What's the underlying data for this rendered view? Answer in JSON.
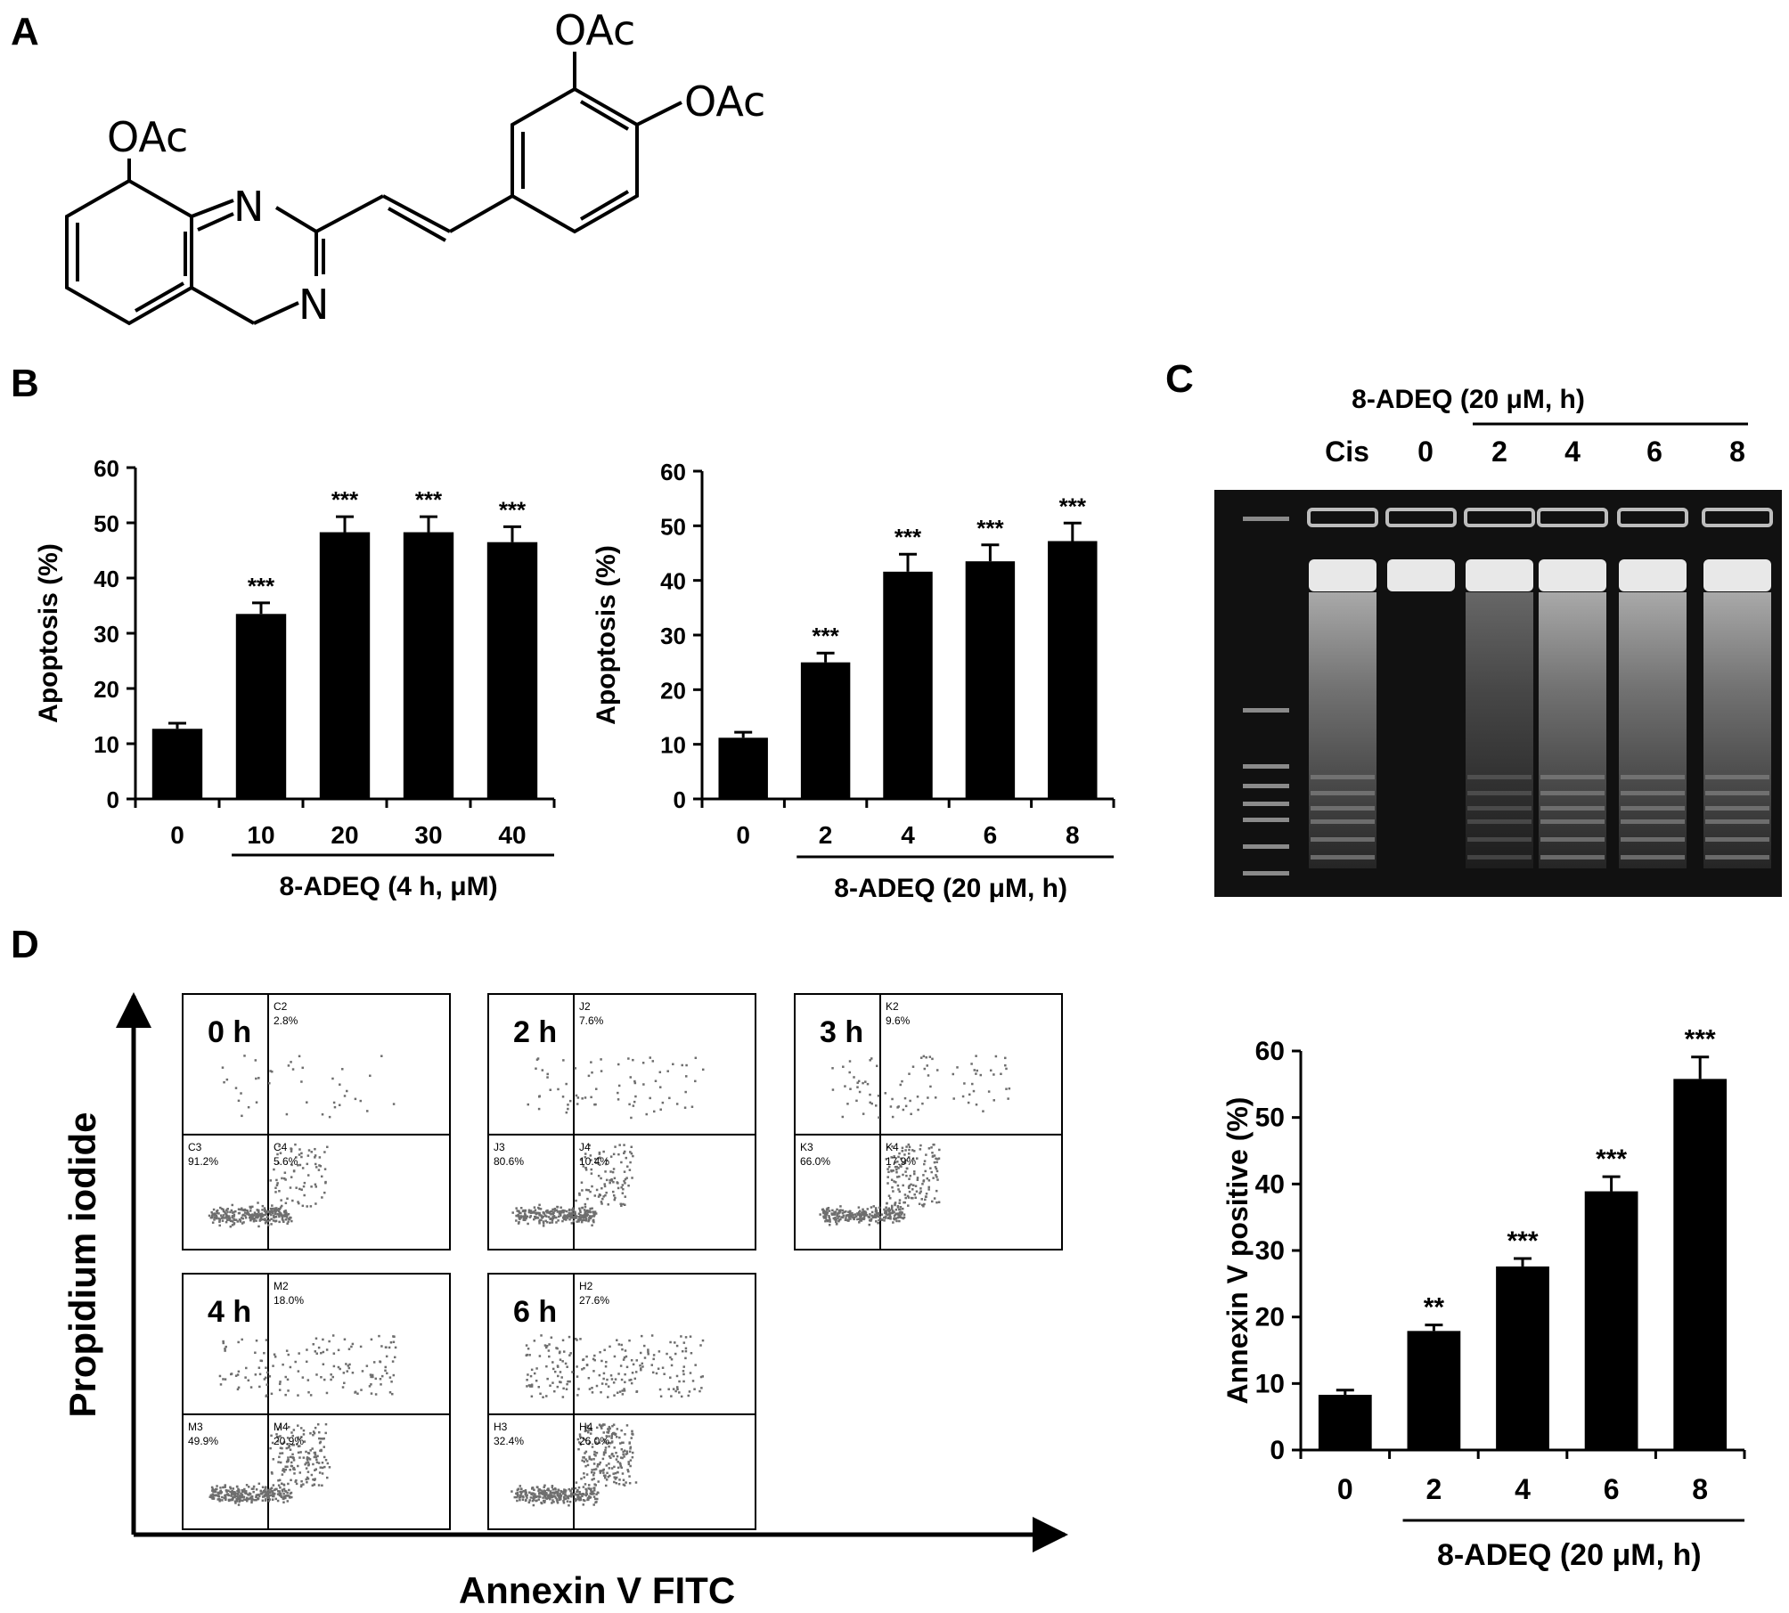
{
  "panel_labels": {
    "A": "A",
    "B": "B",
    "C": "C",
    "D": "D"
  },
  "structure": {
    "oac_top": "OAc",
    "oac_right": "OAc",
    "oac_left": "OAc",
    "n1": "N",
    "n2": "N"
  },
  "gel": {
    "group_label": "8-ADEQ (20 μM, h)",
    "lanes": [
      "Cis",
      "0",
      "2",
      "4",
      "6",
      "8"
    ]
  },
  "flow": {
    "y_axis_label": "Propidium iodide",
    "x_axis_label": "Annexin V FITC",
    "plots": [
      {
        "time": "0 h",
        "q2_id": "C2",
        "q2": "2.8%",
        "q3_id": "C3",
        "q3": "91.2%",
        "q4_id": "C4",
        "q4": "5.6%"
      },
      {
        "time": "2 h",
        "q2_id": "J2",
        "q2": "7.6%",
        "q3_id": "J3",
        "q3": "80.6%",
        "q4_id": "J4",
        "q4": "10.4%"
      },
      {
        "time": "3 h",
        "q2_id": "K2",
        "q2": "9.6%",
        "q3_id": "K3",
        "q3": "66.0%",
        "q4_id": "K4",
        "q4": "17.9%"
      },
      {
        "time": "4 h",
        "q2_id": "M2",
        "q2": "18.0%",
        "q3_id": "M3",
        "q3": "49.9%",
        "q4_id": "M4",
        "q4": "20.9%"
      },
      {
        "time": "6 h",
        "q2_id": "H2",
        "q2": "27.6%",
        "q3_id": "H3",
        "q3": "32.4%",
        "q4_id": "H4",
        "q4": "26.0%"
      }
    ]
  },
  "chart_data": [
    {
      "type": "bar",
      "panel": "B-left",
      "categories": [
        "0",
        "10",
        "20",
        "30",
        "40"
      ],
      "values": [
        12.7,
        33.5,
        48.3,
        48.3,
        46.5
      ],
      "errors": [
        1.0,
        2.0,
        2.8,
        2.8,
        2.8
      ],
      "significance": [
        "",
        "***",
        "***",
        "***",
        "***"
      ],
      "ylabel": "Apoptosis (%)",
      "xlabel": "8-ADEQ  (4 h, μM)",
      "ylim": [
        0,
        60
      ],
      "yticks": [
        0,
        10,
        20,
        30,
        40,
        50,
        60
      ]
    },
    {
      "type": "bar",
      "panel": "B-right",
      "categories": [
        "0",
        "2",
        "4",
        "6",
        "8"
      ],
      "values": [
        11.2,
        25.0,
        41.6,
        43.5,
        47.2
      ],
      "errors": [
        1.0,
        1.7,
        3.2,
        3.0,
        3.3
      ],
      "significance": [
        "",
        "***",
        "***",
        "***",
        "***"
      ],
      "ylabel": "Apoptosis (%)",
      "xlabel": "8-ADEQ (20 μM, h)",
      "ylim": [
        0,
        60
      ],
      "yticks": [
        0,
        10,
        20,
        30,
        40,
        50,
        60
      ]
    },
    {
      "type": "bar",
      "panel": "D-right",
      "categories": [
        "0",
        "2",
        "4",
        "6",
        "8"
      ],
      "values": [
        8.3,
        17.9,
        27.6,
        38.9,
        55.8
      ],
      "errors": [
        0.7,
        0.9,
        1.2,
        2.2,
        3.3
      ],
      "significance": [
        "",
        "**",
        "***",
        "***",
        "***"
      ],
      "ylabel": "Annexin V positive (%)",
      "xlabel": "8-ADEQ (20 μM, h)",
      "ylim": [
        0,
        60
      ],
      "yticks": [
        0,
        10,
        20,
        30,
        40,
        50,
        60
      ]
    }
  ]
}
